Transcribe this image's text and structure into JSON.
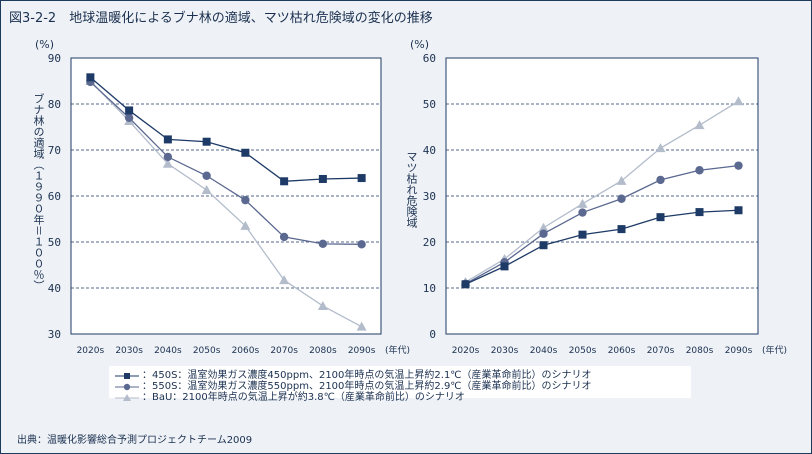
{
  "title": "図3-2-2　地球温暖化によるブナ林の適域、マツ枯れ危険域の変化の推移",
  "source": "出典：温暖化影響総合予測プロジェクトチーム2009",
  "legend": [
    {
      "marker": "square",
      "text": "：450S：温室効果ガス濃度450ppm、2100年時点の気温上昇約2.1℃（産業革命前比）のシナリオ"
    },
    {
      "marker": "circle",
      "text": "：550S：温室効果ガス濃度550ppm、2100年時点の気温上昇約2.9℃（産業革命前比）のシナリオ"
    },
    {
      "marker": "triangle",
      "text": "：BaU：2100年時点の気温上昇が約3.8℃（産業革命前比）のシナリオ"
    }
  ],
  "colors": {
    "450S": "#1e3a66",
    "550S": "#5b6890",
    "BaU": "#b3bccb"
  },
  "chart_data": [
    {
      "type": "line",
      "ylabel": "ブナ林の適域（１９９０年＝１００％）",
      "yunit": "(%)",
      "xunit": "(年代)",
      "ylim": [
        30,
        90
      ],
      "yticks": [
        30,
        40,
        50,
        60,
        70,
        80,
        90
      ],
      "grid": "dashed horizontal",
      "categories": [
        "2020s",
        "2030s",
        "2040s",
        "2050s",
        "2060s",
        "2070s",
        "2080s",
        "2090s"
      ],
      "series": [
        {
          "key": "450S",
          "marker": "square",
          "values": [
            85.8,
            78.6,
            72.3,
            71.8,
            69.4,
            63.2,
            63.7,
            63.9
          ]
        },
        {
          "key": "550S",
          "marker": "circle",
          "values": [
            84.8,
            77.0,
            68.5,
            64.4,
            59.1,
            51.1,
            49.6,
            49.5
          ]
        },
        {
          "key": "BaU",
          "marker": "triangle",
          "values": [
            85.0,
            76.3,
            67.0,
            61.3,
            53.5,
            41.7,
            36.1,
            31.6
          ]
        }
      ]
    },
    {
      "type": "line",
      "ylabel": "マツ枯れ危険域",
      "yunit": "(%)",
      "xunit": "(年代)",
      "ylim": [
        0,
        60
      ],
      "yticks": [
        0,
        10,
        20,
        30,
        40,
        50,
        60
      ],
      "grid": "dashed horizontal",
      "categories": [
        "2020s",
        "2030s",
        "2040s",
        "2050s",
        "2060s",
        "2070s",
        "2080s",
        "2090s"
      ],
      "series": [
        {
          "key": "450S",
          "marker": "square",
          "values": [
            10.8,
            14.7,
            19.3,
            21.6,
            22.8,
            25.4,
            26.5,
            26.9
          ]
        },
        {
          "key": "550S",
          "marker": "circle",
          "values": [
            10.9,
            15.6,
            21.8,
            26.4,
            29.4,
            33.5,
            35.6,
            36.6
          ]
        },
        {
          "key": "BaU",
          "marker": "triangle",
          "values": [
            11.3,
            16.3,
            23.1,
            28.3,
            33.3,
            40.4,
            45.4,
            50.6
          ]
        }
      ]
    }
  ]
}
